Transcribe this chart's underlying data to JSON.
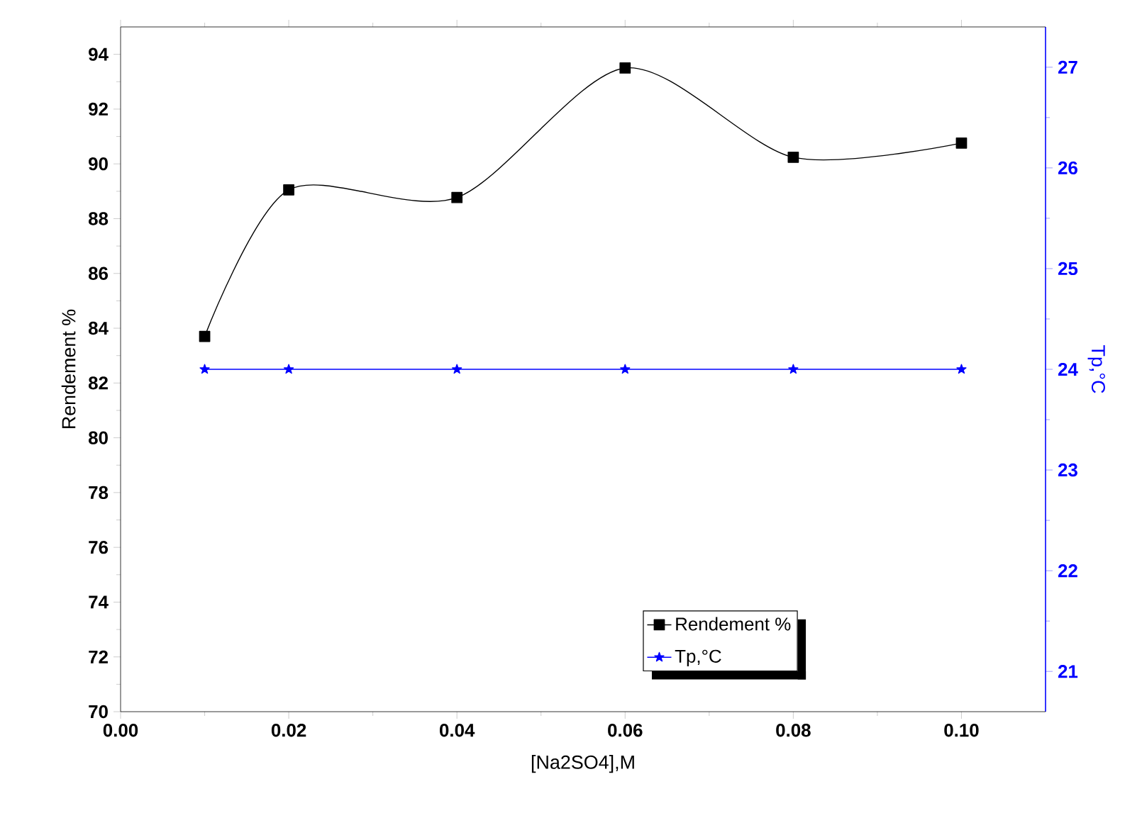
{
  "chart_data": {
    "type": "line",
    "xlabel": "[Na2SO4],M",
    "ylabel": "Rendement %",
    "y2label": "Tp,°C",
    "x": [
      0.01,
      0.02,
      0.04,
      0.06,
      0.08,
      0.1
    ],
    "series": [
      {
        "name": "Rendement %",
        "color": "#000000",
        "marker": "square",
        "values": [
          83.7,
          89.05,
          88.77,
          93.5,
          90.24,
          90.76
        ]
      },
      {
        "name": "Tp,°C",
        "color": "#0000ff",
        "marker": "star",
        "axis": "y2",
        "values": [
          24,
          24,
          24,
          24,
          24,
          24
        ]
      }
    ],
    "xlim": [
      0,
      0.11
    ],
    "ylim": [
      70,
      95
    ],
    "y2lim": [
      20.6,
      27.4
    ],
    "xticks": [
      {
        "value": 0,
        "label": "0.00"
      },
      0.02,
      0.04,
      0.06,
      0.08,
      {
        "value": 0.1,
        "label": "0.10"
      }
    ],
    "yticks": [
      70,
      72,
      74,
      76,
      78,
      80,
      82,
      84,
      86,
      88,
      90,
      92,
      94
    ],
    "y2ticks": [
      21,
      22,
      23,
      24,
      25,
      26,
      27
    ],
    "legend": "bottom right",
    "line_style": "solid"
  }
}
